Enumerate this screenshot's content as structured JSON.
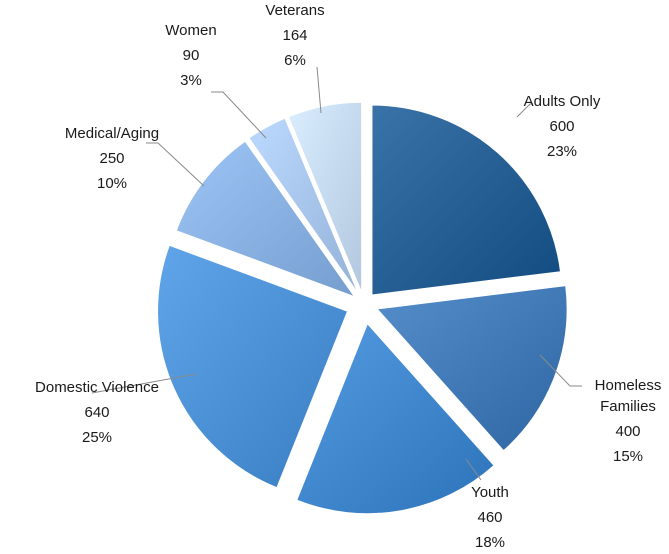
{
  "chart_data": {
    "type": "pie",
    "exploded": true,
    "title": "",
    "slices": [
      {
        "label": "Adults Only",
        "value": 600,
        "percent": "23%",
        "color": "#245d92"
      },
      {
        "label": "Homeless\nFamilies",
        "value": 400,
        "percent": "15%",
        "color": "#3f78b4"
      },
      {
        "label": "Youth",
        "value": 460,
        "percent": "18%",
        "color": "#3e85cb"
      },
      {
        "label": "Domestic Violence",
        "value": 640,
        "percent": "25%",
        "color": "#4a8fd4"
      },
      {
        "label": "Medical/Aging",
        "value": 250,
        "percent": "10%",
        "color": "#87afe0"
      },
      {
        "label": "Women",
        "value": 90,
        "percent": "3%",
        "color": "#a6c4ea"
      },
      {
        "label": "Veterans",
        "value": 164,
        "percent": "6%",
        "color": "#c4d8f1"
      }
    ]
  }
}
